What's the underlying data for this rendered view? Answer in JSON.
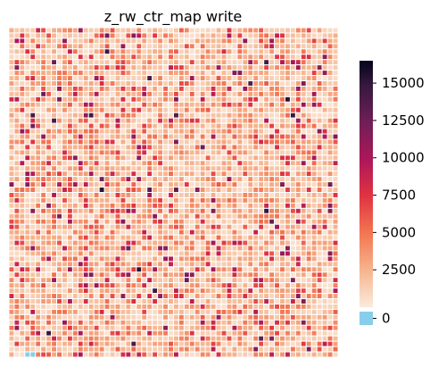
{
  "chart_data": {
    "type": "heatmap",
    "title": "z_rw_ctr_map write",
    "rows": 62,
    "cols": 62,
    "value_range": [
      0,
      16500
    ],
    "zero_color": "#87ceeb",
    "cell_border_color": "#ffffff",
    "grid": false,
    "legend": "right",
    "colorbar": {
      "ticks": [
        0,
        2500,
        5000,
        7500,
        10000,
        12500,
        15000
      ],
      "tick_labels": [
        "0",
        "2500",
        "5000",
        "7500",
        "10000",
        "12500",
        "15000"
      ],
      "colors": [
        {
          "at": 0.0,
          "hex": "#faebdd"
        },
        {
          "at": 0.15,
          "hex": "#f6b48e"
        },
        {
          "at": 0.3,
          "hex": "#f37651"
        },
        {
          "at": 0.45,
          "hex": "#e13342"
        },
        {
          "at": 0.6,
          "hex": "#ad1759"
        },
        {
          "at": 0.75,
          "hex": "#701f57"
        },
        {
          "at": 0.9,
          "hex": "#35193e"
        },
        {
          "at": 1.0,
          "hex": "#03051a"
        }
      ]
    },
    "value_distribution": [
      {
        "share": 0.38,
        "min": 300,
        "max": 1700
      },
      {
        "share": 0.3,
        "min": 1700,
        "max": 3300
      },
      {
        "share": 0.16,
        "min": 3300,
        "max": 5200
      },
      {
        "share": 0.1,
        "min": 5200,
        "max": 8500
      },
      {
        "share": 0.05,
        "min": 8500,
        "max": 12000
      },
      {
        "share": 0.01,
        "min": 12000,
        "max": 15500
      }
    ],
    "zero_cells": [
      {
        "row": 61,
        "col": 3
      },
      {
        "row": 61,
        "col": 4
      }
    ],
    "sample_seed": 20240917
  }
}
